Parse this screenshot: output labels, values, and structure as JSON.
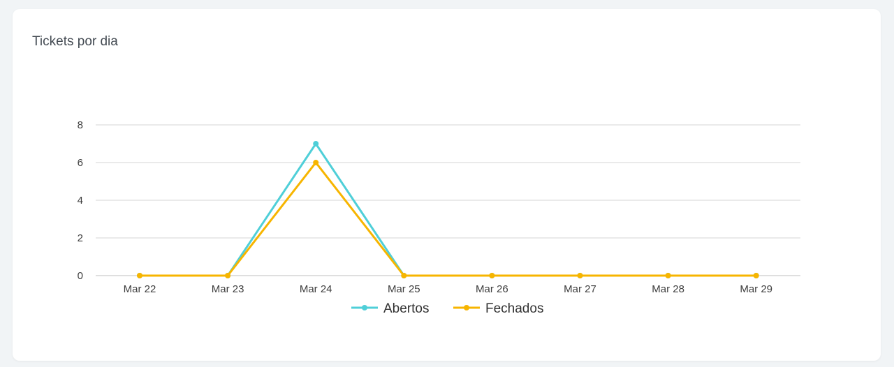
{
  "card": {
    "title": "Tickets por dia"
  },
  "chart_data": {
    "type": "line",
    "title": "Tickets por dia",
    "x": [
      "Mar 22",
      "Mar 23",
      "Mar 24",
      "Mar 25",
      "Mar 26",
      "Mar 27",
      "Mar 28",
      "Mar 29"
    ],
    "ylim": [
      0,
      8
    ],
    "yticks": [
      0,
      2,
      4,
      6,
      8
    ],
    "grid": true,
    "legend": "bottom",
    "series": [
      {
        "name": "Abertos",
        "color": "#4fcfd8",
        "values": [
          0,
          0,
          7,
          0,
          0,
          0,
          0,
          0
        ]
      },
      {
        "name": "Fechados",
        "color": "#f7b500",
        "values": [
          0,
          0,
          6,
          0,
          0,
          0,
          0,
          0
        ]
      }
    ]
  }
}
